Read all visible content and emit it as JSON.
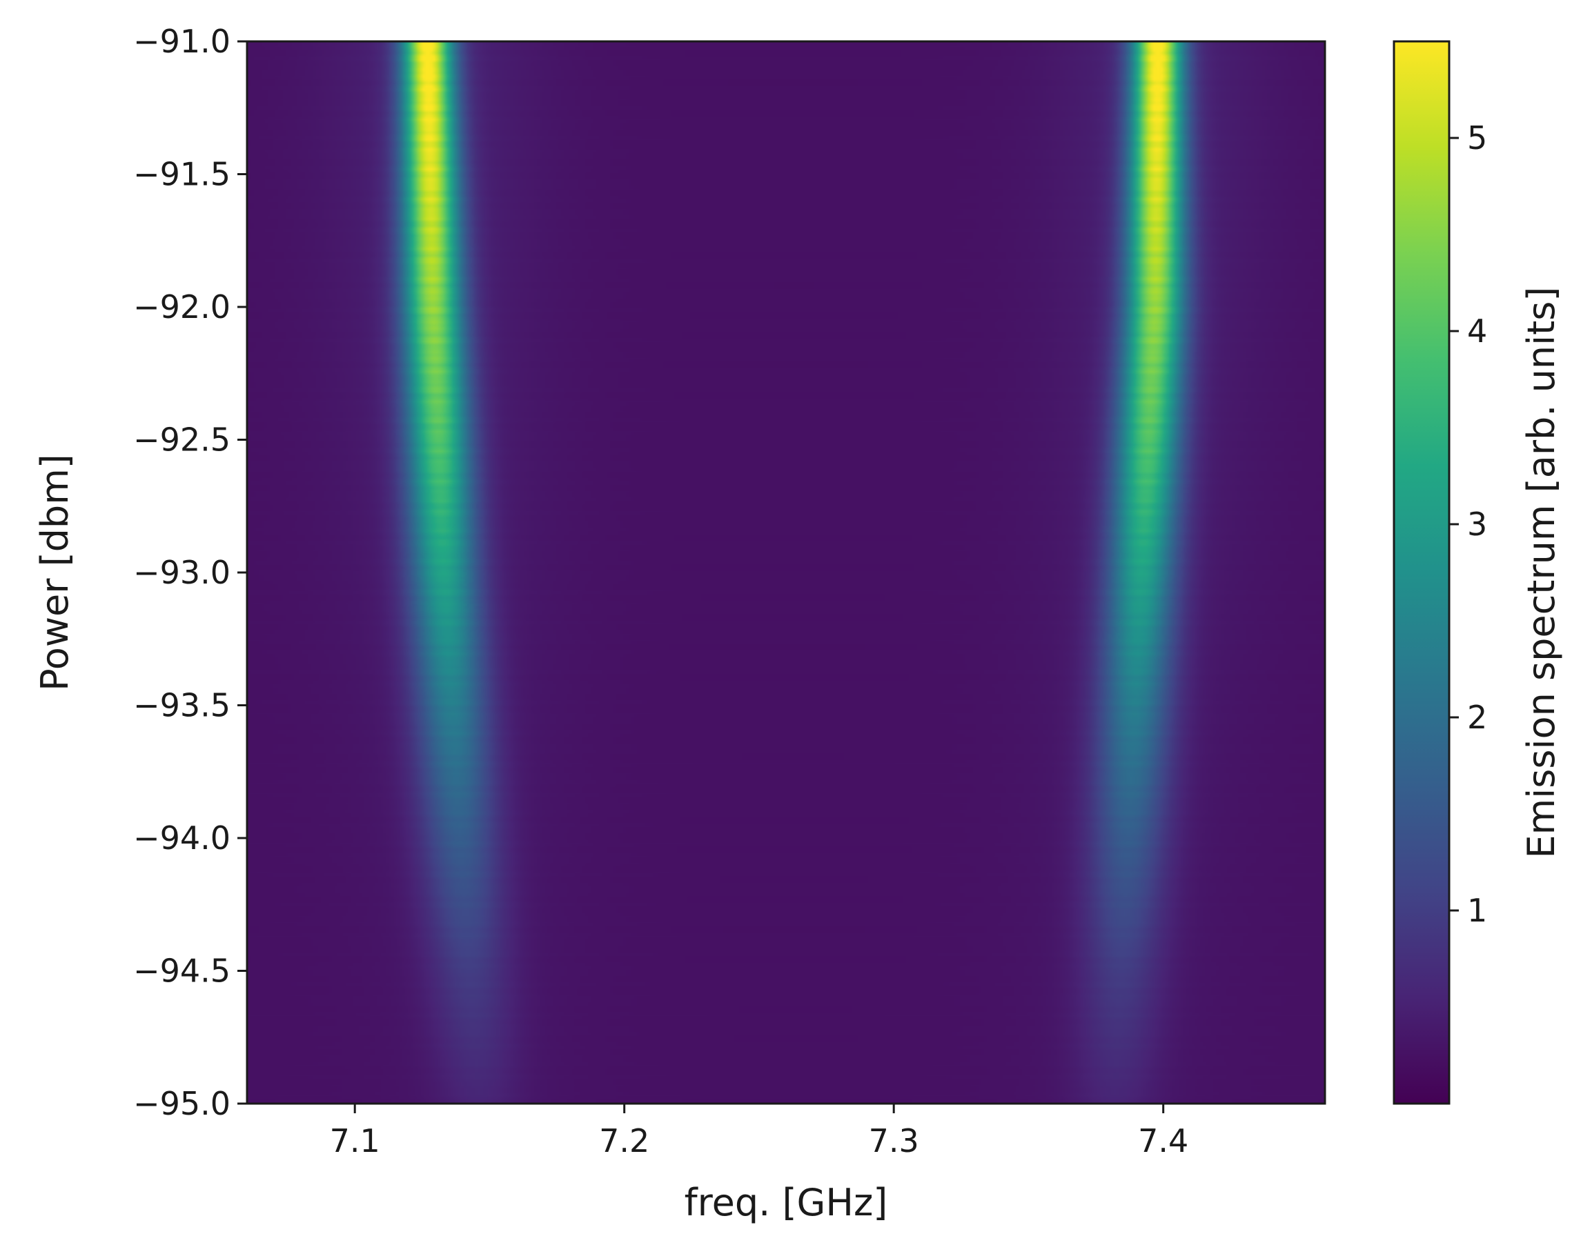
{
  "chart_data": {
    "type": "heatmap",
    "title": "",
    "xlabel": "freq. [GHz]",
    "ylabel": "Power [dbm]",
    "colorbar_label": "Emission spectrum [arb. units]",
    "colormap": "viridis",
    "xlim": [
      7.06,
      7.46
    ],
    "ylim": [
      -95.0,
      -91.0
    ],
    "clim": [
      0.0,
      5.5
    ],
    "xticks": [
      7.1,
      7.2,
      7.3,
      7.4
    ],
    "xtick_labels": [
      "7.1",
      "7.2",
      "7.3",
      "7.4"
    ],
    "yticks": [
      -91.0,
      -91.5,
      -92.0,
      -92.5,
      -93.0,
      -93.5,
      -94.0,
      -94.5,
      -95.0
    ],
    "ytick_labels": [
      "−91.0",
      "−91.5",
      "−92.0",
      "−92.5",
      "−93.0",
      "−93.5",
      "−94.0",
      "−94.5",
      "−95.0"
    ],
    "cbar_ticks": [
      1,
      2,
      3,
      4,
      5
    ],
    "cbar_tick_labels": [
      "1",
      "2",
      "3",
      "4",
      "5"
    ],
    "grid": false,
    "peaks": [
      {
        "label": "lower peak",
        "center_ghz": [
          {
            "power_dbm": -91.0,
            "freq_ghz": 7.127
          },
          {
            "power_dbm": -92.0,
            "freq_ghz": 7.129
          },
          {
            "power_dbm": -93.0,
            "freq_ghz": 7.133
          },
          {
            "power_dbm": -94.0,
            "freq_ghz": 7.139
          },
          {
            "power_dbm": -95.0,
            "freq_ghz": 7.146
          }
        ],
        "peak_value": [
          {
            "power_dbm": -91.0,
            "value": 5.4
          },
          {
            "power_dbm": -91.5,
            "value": 5.0
          },
          {
            "power_dbm": -92.0,
            "value": 4.4
          },
          {
            "power_dbm": -92.5,
            "value": 3.8
          },
          {
            "power_dbm": -93.0,
            "value": 3.0
          },
          {
            "power_dbm": -93.5,
            "value": 2.2
          },
          {
            "power_dbm": -94.0,
            "value": 1.5
          },
          {
            "power_dbm": -94.5,
            "value": 0.9
          },
          {
            "power_dbm": -95.0,
            "value": 0.5
          }
        ]
      },
      {
        "label": "upper peak",
        "center_ghz": [
          {
            "power_dbm": -91.0,
            "freq_ghz": 7.398
          },
          {
            "power_dbm": -92.0,
            "freq_ghz": 7.397
          },
          {
            "power_dbm": -93.0,
            "freq_ghz": 7.392
          },
          {
            "power_dbm": -94.0,
            "freq_ghz": 7.387
          },
          {
            "power_dbm": -95.0,
            "freq_ghz": 7.382
          }
        ],
        "peak_value": [
          {
            "power_dbm": -91.0,
            "value": 5.4
          },
          {
            "power_dbm": -91.5,
            "value": 5.0
          },
          {
            "power_dbm": -92.0,
            "value": 4.4
          },
          {
            "power_dbm": -92.5,
            "value": 3.8
          },
          {
            "power_dbm": -93.0,
            "value": 3.0
          },
          {
            "power_dbm": -93.5,
            "value": 2.2
          },
          {
            "power_dbm": -94.0,
            "value": 1.5
          },
          {
            "power_dbm": -94.5,
            "value": 0.9
          },
          {
            "power_dbm": -95.0,
            "value": 0.5
          }
        ]
      }
    ],
    "background_value": 0.25
  }
}
